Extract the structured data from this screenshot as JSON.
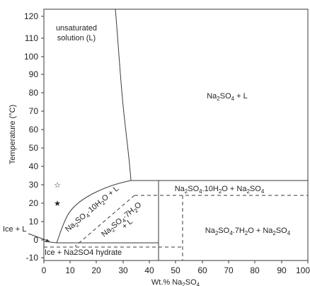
{
  "diagram": {
    "x_axis": {
      "label_prefix": "Wt.% Na",
      "label_sub": "2",
      "label_suffix": "SO",
      "label_sub2": "4",
      "ticks": [
        "0",
        "10",
        "20",
        "30",
        "40",
        "50",
        "60",
        "70",
        "80",
        "90",
        "100"
      ]
    },
    "y_axis": {
      "label": "Temperature (°C)",
      "ticks": [
        "-10",
        "0",
        "10",
        "20",
        "30",
        "40",
        "50",
        "60",
        "70",
        "80",
        "90",
        "100",
        "110",
        "120"
      ]
    },
    "regions": {
      "unsaturated_line1": "unsaturated",
      "unsaturated_line2": "solution (L)",
      "na2so4_l": {
        "a": "Na",
        "s1": "2",
        "b": "SO",
        "s2": "4",
        "c": " + L"
      },
      "decahydrate_l": {
        "a": "Na",
        "s1": "2",
        "b": "SO",
        "s2": "4",
        "c": "·10H",
        "s3": "2",
        "d": "O + L"
      },
      "heptahydrate_l_1": {
        "a": "Na",
        "s1": "2",
        "b": "SO",
        "s2": "4",
        "c": "·7H",
        "s3": "2",
        "d": "O"
      },
      "heptahydrate_l_2": "+ L",
      "decahydrate_na2so4": {
        "a": "Na",
        "s1": "2",
        "b": "SO",
        "s2": "4",
        "c": ".10H",
        "s3": "2",
        "d": "O + Na",
        "s4": "2",
        "e": "SO",
        "s5": "4"
      },
      "heptahydrate_na2so4": {
        "a": "Na",
        "s1": "2",
        "b": "SO",
        "s2": "4",
        "c": ".7H",
        "s3": "2",
        "d": "O + Na",
        "s4": "2",
        "e": "SO",
        "s5": "4"
      },
      "ice_l": "Ice + L",
      "ice_hydrate": "Ice + Na2SO4 hydrate"
    },
    "markers": [
      {
        "symbol": "☆",
        "wt": 5.5,
        "temp": 30
      },
      {
        "symbol": "★",
        "wt": 5.5,
        "temp": 20
      }
    ]
  }
}
